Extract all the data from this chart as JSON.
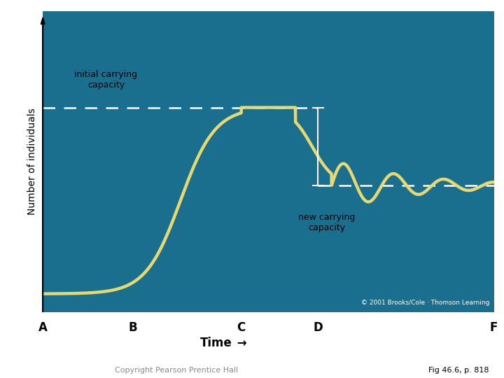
{
  "bg_color": "#1a6e8e",
  "figure_bg_color": "#ffffff",
  "curve_color": "#e8d870",
  "curve_linewidth": 3.2,
  "dashed_color": "#ffffff",
  "initial_K": 0.68,
  "new_K": 0.42,
  "x_ticks": [
    "A",
    "B",
    "C",
    "D",
    "F"
  ],
  "x_tick_positions": [
    0.0,
    0.2,
    0.44,
    0.61,
    1.0
  ],
  "ylabel": "Number of individuals",
  "initial_label_line1": "initial carrying",
  "initial_label_line2": "capacity",
  "new_label_line1": "new carrying",
  "new_label_line2": "capacity",
  "copyright_text": "© 2001 Brooks/Cole · Thomson Learning",
  "bottom_left_text": "Copyright Pearson Prentice Hall",
  "bottom_right_text": "Fig 46.6, p. 818",
  "ylabel_fontsize": 10,
  "tick_fontsize": 12
}
